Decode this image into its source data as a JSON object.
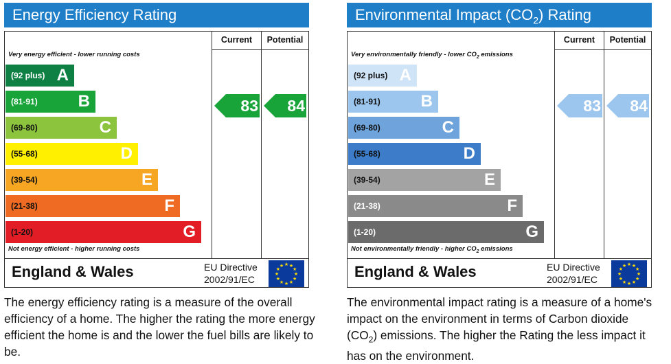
{
  "energy": {
    "title": "Energy Efficiency Rating",
    "col_current": "Current",
    "col_potential": "Potential",
    "note_top": "Very energy efficient - lower running costs",
    "note_bottom": "Not energy efficient - higher running costs",
    "bands": [
      {
        "range": "(92 plus)",
        "letter": "A",
        "color": "#0e8043",
        "text_color": "#ffffff"
      },
      {
        "range": "(81-91)",
        "letter": "B",
        "color": "#19a43a",
        "text_color": "#ffffff"
      },
      {
        "range": "(69-80)",
        "letter": "C",
        "color": "#8cc43e",
        "text_color": "#111111"
      },
      {
        "range": "(55-68)",
        "letter": "D",
        "color": "#fff000",
        "text_color": "#111111"
      },
      {
        "range": "(39-54)",
        "letter": "E",
        "color": "#f6a623",
        "text_color": "#111111"
      },
      {
        "range": "(21-38)",
        "letter": "F",
        "color": "#ef6a22",
        "text_color": "#111111"
      },
      {
        "range": "(1-20)",
        "letter": "G",
        "color": "#e31d25",
        "text_color": "#111111"
      }
    ],
    "current": {
      "value": "83",
      "color": "#19a43a"
    },
    "potential": {
      "value": "84",
      "color": "#19a43a"
    },
    "region": "England & Wales",
    "directive_line1": "EU Directive",
    "directive_line2": "2002/91/EC",
    "description": "The energy efficiency rating is a measure of the overall efficiency of a home. The higher the rating the more energy efficient the home is and the lower the fuel bills are likely to be."
  },
  "environment": {
    "title_pre": "Environmental Impact (CO",
    "title_sub": "2",
    "title_post": ") Rating",
    "col_current": "Current",
    "col_potential": "Potential",
    "note_top_pre": "Very environmentally friendly - lower CO",
    "note_top_sub": "2",
    "note_top_post": " emissions",
    "note_bottom_pre": "Not environmentally friendly - higher CO",
    "note_bottom_sub": "2",
    "note_bottom_post": " emissions",
    "bands": [
      {
        "range": "(92 plus)",
        "letter": "A",
        "color": "#cfe4f7",
        "text_color": "#111111"
      },
      {
        "range": "(81-91)",
        "letter": "B",
        "color": "#9dc6ee",
        "text_color": "#111111"
      },
      {
        "range": "(69-80)",
        "letter": "C",
        "color": "#6ea3dc",
        "text_color": "#111111"
      },
      {
        "range": "(55-68)",
        "letter": "D",
        "color": "#3c7cc9",
        "text_color": "#111111"
      },
      {
        "range": "(39-54)",
        "letter": "E",
        "color": "#a3a3a3",
        "text_color": "#111111"
      },
      {
        "range": "(21-38)",
        "letter": "F",
        "color": "#8a8a8a",
        "text_color": "#ffffff"
      },
      {
        "range": "(1-20)",
        "letter": "G",
        "color": "#6b6b6b",
        "text_color": "#ffffff"
      }
    ],
    "current": {
      "value": "83",
      "color": "#9dc6ee"
    },
    "potential": {
      "value": "84",
      "color": "#9dc6ee"
    },
    "region": "England & Wales",
    "directive_line1": "EU Directive",
    "directive_line2": "2002/91/EC",
    "desc_pre": "The environmental impact rating is a measure of a home's impact on the environment in terms of Carbon dioxide (CO",
    "desc_sub": "2",
    "desc_post": ") emissions. The higher the Rating the less impact it has on the environment."
  }
}
